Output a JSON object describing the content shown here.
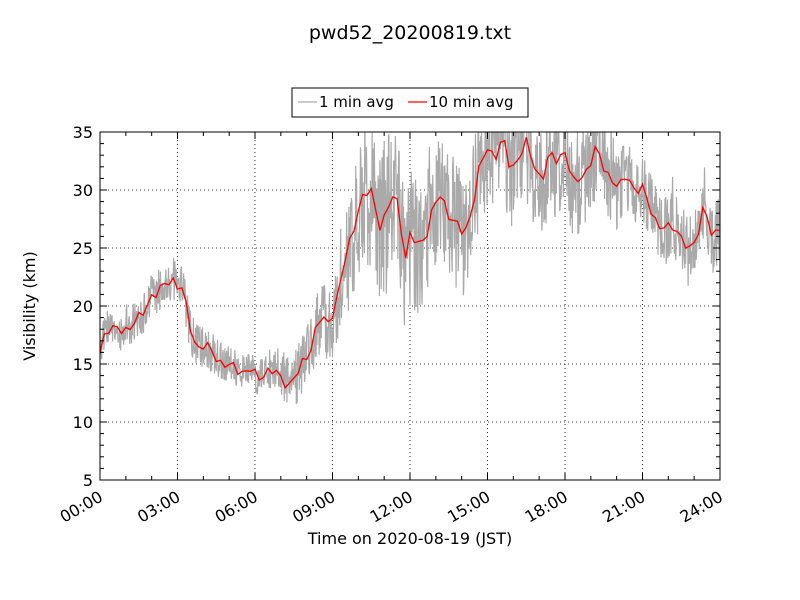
{
  "chart_data": {
    "type": "line",
    "title": "pwd52_20200819.txt",
    "xlabel": "Time on 2020-08-19 (JST)",
    "ylabel": "Visibility (km)",
    "x_unit": "hours",
    "xlim": [
      0,
      24
    ],
    "ylim": [
      5,
      35
    ],
    "x_ticks": [
      0,
      3,
      6,
      9,
      12,
      15,
      18,
      21,
      24
    ],
    "x_tick_labels": [
      "00:00",
      "03:00",
      "06:00",
      "09:00",
      "12:00",
      "15:00",
      "18:00",
      "21:00",
      "24:00"
    ],
    "y_ticks": [
      5,
      10,
      15,
      20,
      25,
      30,
      35
    ],
    "y_tick_labels": [
      "5",
      "10",
      "15",
      "20",
      "25",
      "30",
      "35"
    ],
    "grid": true,
    "legend_position": "top-center",
    "series": [
      {
        "name": "1 min avg",
        "color": "#aaaaaa",
        "noise_amplitude": [
          [
            0,
            1.5
          ],
          [
            3,
            2.0
          ],
          [
            6,
            1.5
          ],
          [
            8.6,
            3.0
          ],
          [
            9.3,
            5.0
          ],
          [
            11,
            7.0
          ],
          [
            12,
            6.0
          ],
          [
            15,
            5.0
          ],
          [
            18,
            5.0
          ],
          [
            21,
            3.0
          ],
          [
            24,
            3.0
          ]
        ]
      },
      {
        "name": "10 min avg",
        "color": "#ff0000",
        "x": [
          0,
          0.15,
          0.3,
          0.5,
          0.8,
          1.0,
          1.3,
          1.6,
          1.8,
          2.0,
          2.2,
          2.4,
          2.6,
          2.8,
          3.0,
          3.2,
          3.4,
          3.6,
          3.8,
          4.0,
          4.3,
          4.6,
          5.0,
          5.3,
          5.6,
          5.9,
          6.1,
          6.3,
          6.5,
          6.8,
          7.0,
          7.3,
          7.6,
          7.9,
          8.1,
          8.4,
          8.6,
          8.8,
          9.0,
          9.2,
          9.5,
          9.8,
          10.0,
          10.2,
          10.5,
          10.8,
          11.1,
          11.4,
          11.6,
          11.8,
          12.0,
          12.3,
          12.6,
          12.9,
          13.2,
          13.5,
          13.8,
          14.1,
          14.4,
          14.7,
          15.0,
          15.3,
          15.6,
          15.9,
          16.2,
          16.5,
          16.8,
          17.1,
          17.4,
          17.7,
          18.0,
          18.3,
          18.6,
          18.9,
          19.2,
          19.5,
          19.8,
          20.1,
          20.4,
          20.7,
          21.0,
          21.3,
          21.6,
          21.9,
          22.2,
          22.5,
          22.8,
          23.1,
          23.4,
          23.7,
          24.0
        ],
        "values": [
          16.0,
          17.5,
          18.2,
          18.0,
          17.8,
          18.0,
          18.6,
          19.0,
          20.0,
          21.0,
          21.2,
          21.4,
          22.0,
          22.4,
          21.8,
          21.5,
          19.0,
          17.2,
          16.5,
          16.6,
          16.1,
          15.3,
          14.8,
          14.5,
          14.4,
          14.6,
          13.4,
          14.2,
          14.5,
          14.3,
          13.6,
          13.3,
          14.0,
          15.2,
          16.0,
          18.5,
          19.0,
          18.2,
          19.5,
          21.0,
          24.0,
          26.5,
          28.5,
          29.5,
          29.8,
          27.0,
          28.0,
          29.8,
          28.0,
          24.0,
          26.0,
          25.2,
          26.0,
          28.5,
          29.5,
          28.0,
          27.0,
          26.0,
          28.5,
          32.0,
          33.5,
          33.0,
          34.5,
          31.5,
          33.0,
          34.0,
          32.0,
          31.0,
          33.0,
          32.5,
          33.5,
          30.5,
          31.0,
          32.0,
          33.5,
          32.0,
          31.0,
          30.0,
          31.5,
          30.0,
          30.0,
          28.5,
          27.0,
          26.5,
          27.0,
          26.0,
          24.5,
          26.0,
          29.0,
          25.5,
          27.0
        ]
      }
    ]
  }
}
